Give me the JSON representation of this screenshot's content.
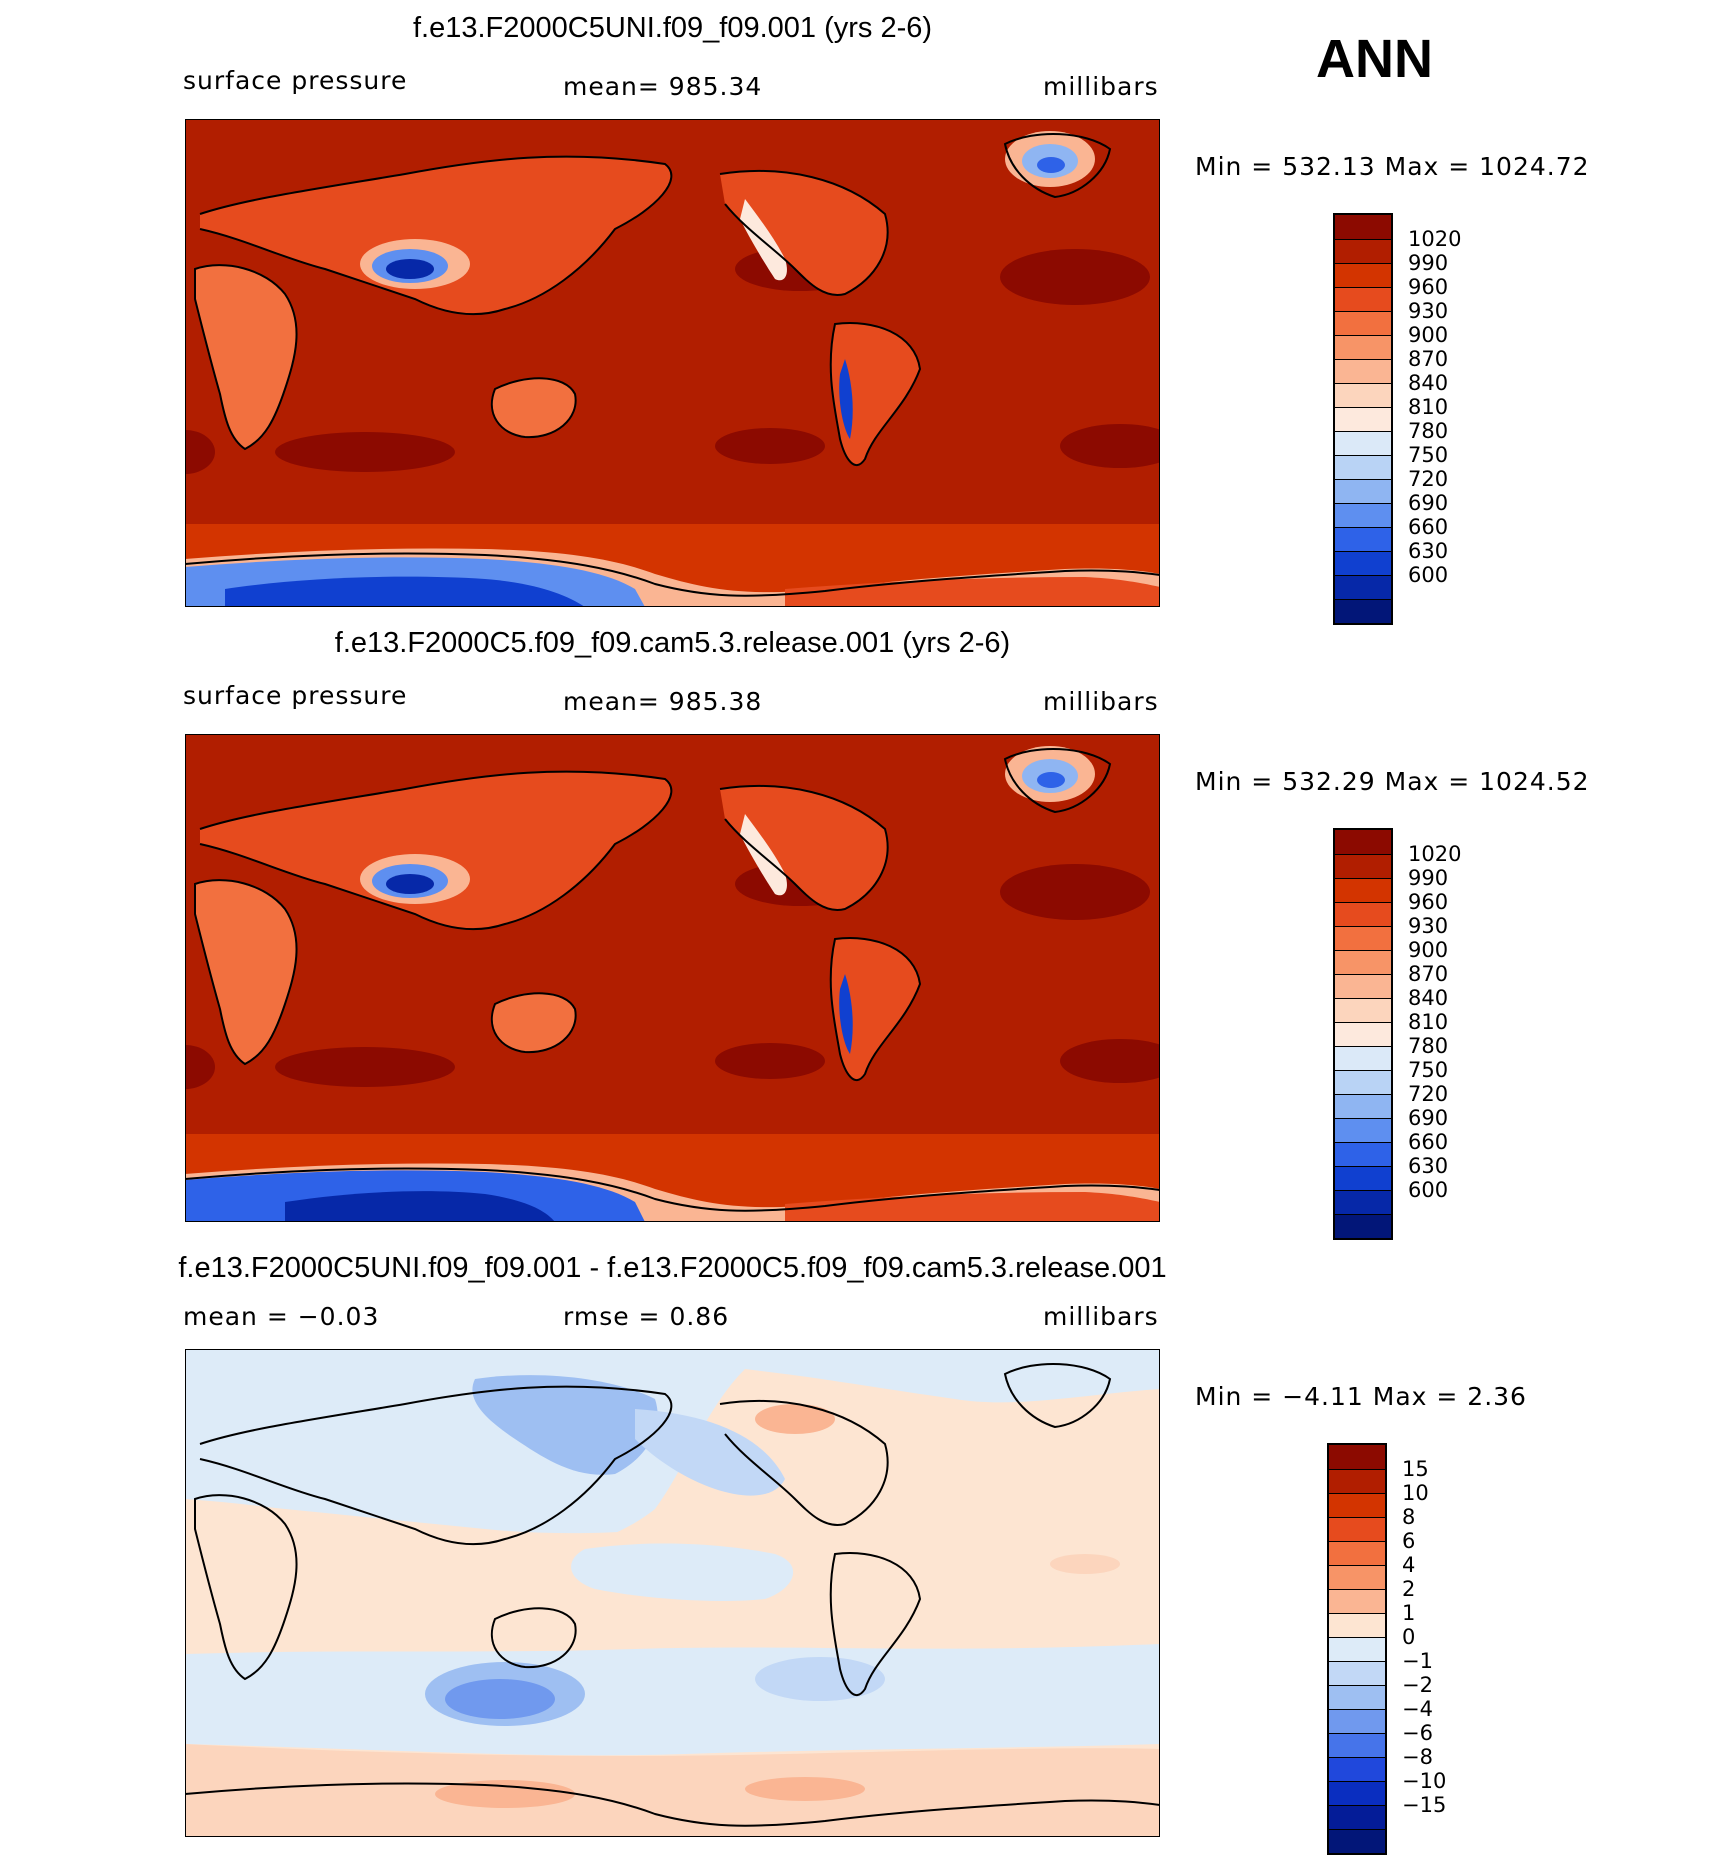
{
  "season": "ANN",
  "panels": [
    {
      "title": "f.e13.F2000C5UNI.f09_f09.001 (yrs 2-6)",
      "left_label": "surface pressure",
      "center_label": "mean=  985.34",
      "units": "millibars",
      "minmax": "Min  =  532.13  Max  =  1024.72"
    },
    {
      "title": "f.e13.F2000C5.f09_f09.cam5.3.release.001 (yrs 2-6)",
      "left_label": "surface pressure",
      "center_label": "mean=  985.38",
      "units": "millibars",
      "minmax": "Min  =  532.29  Max  =  1024.52"
    },
    {
      "title": "f.e13.F2000C5UNI.f09_f09.001 - f.e13.F2000C5.f09_f09.cam5.3.release.001",
      "left_label": "mean  =    −0.03",
      "center_label": "rmse  =      0.86",
      "units": "millibars",
      "minmax": "Min  =    −4.11  Max  =      2.36"
    }
  ],
  "chart_data": [
    {
      "type": "heatmap",
      "title": "f.e13.F2000C5UNI.f09_f09.001 (yrs 2-6)",
      "variable": "surface pressure",
      "units": "millibars",
      "mean": 985.34,
      "min": 532.13,
      "max": 1024.72,
      "colorbar_levels": [
        1020,
        990,
        960,
        930,
        900,
        870,
        840,
        810,
        780,
        750,
        720,
        690,
        660,
        630,
        600
      ],
      "colorbar_colors": [
        "#8c0a00",
        "#b11e00",
        "#d33400",
        "#e64b1e",
        "#f2703f",
        "#f79467",
        "#fab593",
        "#fcd5bd",
        "#fde9dd",
        "#dbe9f8",
        "#b9d3f5",
        "#8fb5f2",
        "#5e8ff0",
        "#2e62e8",
        "#1040d0",
        "#0628a8",
        "#021678"
      ]
    },
    {
      "type": "heatmap",
      "title": "f.e13.F2000C5.f09_f09.cam5.3.release.001 (yrs 2-6)",
      "variable": "surface pressure",
      "units": "millibars",
      "mean": 985.38,
      "min": 532.29,
      "max": 1024.52,
      "colorbar_levels": [
        1020,
        990,
        960,
        930,
        900,
        870,
        840,
        810,
        780,
        750,
        720,
        690,
        660,
        630,
        600
      ],
      "colorbar_colors": [
        "#8c0a00",
        "#b11e00",
        "#d33400",
        "#e64b1e",
        "#f2703f",
        "#f79467",
        "#fab593",
        "#fcd5bd",
        "#fde9dd",
        "#dbe9f8",
        "#b9d3f5",
        "#8fb5f2",
        "#5e8ff0",
        "#2e62e8",
        "#1040d0",
        "#0628a8",
        "#021678"
      ]
    },
    {
      "type": "heatmap",
      "title": "f.e13.F2000C5UNI.f09_f09.001 - f.e13.F2000C5.f09_f09.cam5.3.release.001",
      "variable": "surface pressure difference",
      "units": "millibars",
      "mean": -0.03,
      "rmse": 0.86,
      "min": -4.11,
      "max": 2.36,
      "colorbar_levels": [
        "15",
        "10",
        "8",
        "6",
        "4",
        "2",
        "1",
        "0",
        "−1",
        "−2",
        "−4",
        "−6",
        "−8",
        "−10",
        "−15"
      ],
      "colorbar_colors": [
        "#8c0a00",
        "#b11e00",
        "#d33400",
        "#e64b1e",
        "#f2703f",
        "#f79467",
        "#fab593",
        "#fde5d2",
        "#ddebf8",
        "#c2d8f6",
        "#9ebff2",
        "#7099ee",
        "#4674ea",
        "#2048dc",
        "#0a2ec0",
        "#041c98",
        "#021678"
      ]
    }
  ]
}
